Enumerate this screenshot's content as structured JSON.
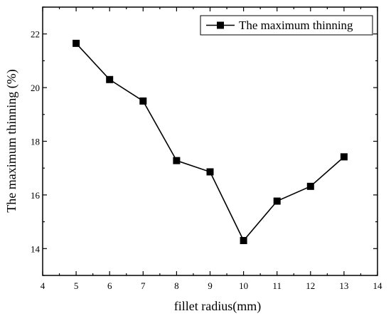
{
  "chart_data": {
    "type": "line",
    "xlabel": "fillet radius(mm)",
    "ylabel": "The maximum thinning (%)",
    "xlim": [
      4,
      14
    ],
    "ylim": [
      13,
      23
    ],
    "x_ticks": [
      4,
      5,
      6,
      7,
      8,
      9,
      10,
      11,
      12,
      13,
      14
    ],
    "y_ticks": [
      14,
      16,
      18,
      20,
      22
    ],
    "legend_position": "top-right",
    "grid": false,
    "series": [
      {
        "name": "The maximum thinning",
        "marker": "square",
        "color": "#000000",
        "x": [
          5,
          6,
          7,
          8,
          9,
          10,
          11,
          12,
          13
        ],
        "values": [
          21.65,
          20.3,
          19.5,
          17.28,
          16.86,
          14.3,
          15.77,
          16.32,
          17.42
        ]
      }
    ]
  }
}
